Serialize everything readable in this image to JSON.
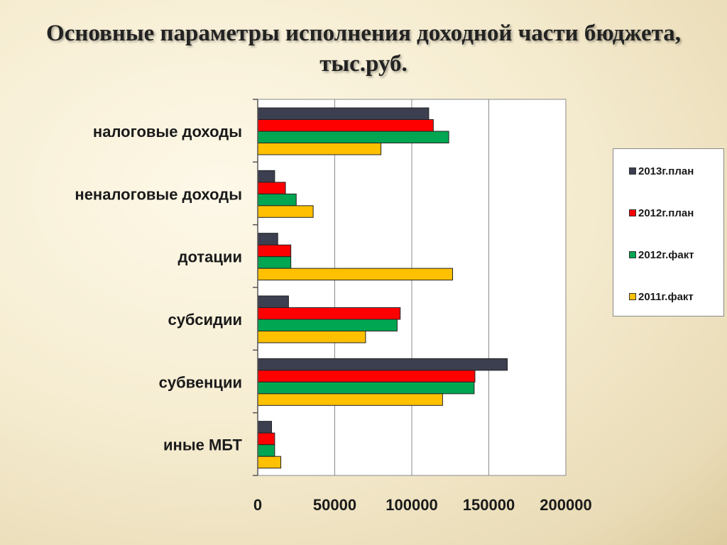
{
  "title": {
    "line1": "Основные параметры исполнения доходной части бюджета,",
    "line2": "тыс.руб."
  },
  "chart_data": {
    "type": "bar",
    "orientation": "horizontal",
    "title": "Основные параметры исполнения доходной части бюджета, тыс.руб.",
    "categories": [
      "налоговые доходы",
      "неналоговые доходы",
      "дотации",
      "субсидии",
      "субвенции",
      "иные МБТ"
    ],
    "series": [
      {
        "name": "2013г.план",
        "color": "#3b3f4f",
        "values": [
          111000,
          11000,
          13000,
          20000,
          162000,
          9000
        ]
      },
      {
        "name": "2012г.план",
        "color": "#ff0000",
        "values": [
          114000,
          18000,
          21500,
          92500,
          141000,
          11000
        ]
      },
      {
        "name": "2012г.факт",
        "color": "#00a651",
        "values": [
          124000,
          25000,
          21500,
          90500,
          140500,
          11000
        ]
      },
      {
        "name": "2011г.факт",
        "color": "#ffc000",
        "values": [
          80000,
          36000,
          126500,
          70000,
          120000,
          15000
        ]
      }
    ],
    "xlim": [
      0,
      200000
    ],
    "xticks": [
      "0",
      "50000",
      "100000",
      "150000",
      "200000"
    ],
    "grid": true,
    "legend_position": "right"
  },
  "legend": {
    "items": [
      {
        "label": "2013г.план",
        "color": "#3b3f4f"
      },
      {
        "label": "2012г.план",
        "color": "#ff0000"
      },
      {
        "label": "2012г.факт",
        "color": "#00a651"
      },
      {
        "label": "2011г.факт",
        "color": "#ffc000"
      }
    ]
  }
}
